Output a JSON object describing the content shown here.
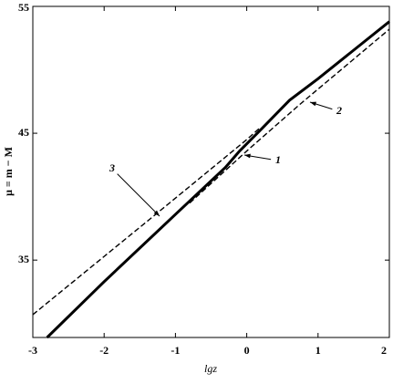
{
  "chart_data": {
    "type": "line",
    "xlabel": "lgz",
    "ylabel": "μ = m − M",
    "xlim": [
      -3,
      2
    ],
    "ylim": [
      28.9,
      55
    ],
    "xticks": [
      -3,
      -2,
      -1,
      0,
      1,
      2
    ],
    "yticks": [
      35,
      45,
      55
    ],
    "series": [
      {
        "name": "1",
        "color": "#000000",
        "linestyle": "solid",
        "x": [
          -2.8,
          -2,
          -1,
          -0.3,
          -0.1,
          0.2,
          0.6,
          1,
          2
        ],
        "values": [
          28.9,
          33.3,
          38.6,
          42.3,
          43.6,
          45.3,
          47.6,
          49.3,
          53.8
        ]
      },
      {
        "name": "2",
        "color": "#000000",
        "linestyle": "dashed",
        "x": [
          -0.8,
          0,
          0.75,
          2
        ],
        "values": [
          39.5,
          43.6,
          47.3,
          53.2
        ]
      },
      {
        "name": "3",
        "color": "#000000",
        "linestyle": "dashed",
        "x": [
          -3,
          -1.3,
          0,
          0.2
        ],
        "values": [
          30.7,
          38.5,
          44.5,
          45.5
        ]
      }
    ]
  }
}
